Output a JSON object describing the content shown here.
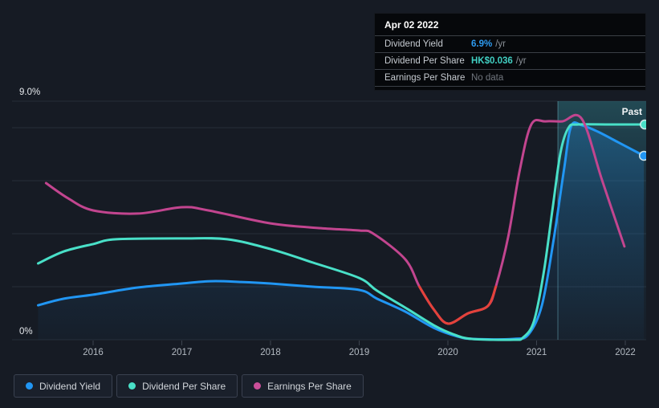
{
  "colors": {
    "background": "#161b24",
    "gridline": "#262d38",
    "axis_text": "#b3bac2",
    "y_axis_text": "#e5e8ec",
    "past_line": "#7fc9d6",
    "blue": "#2196f3",
    "teal": "#49e0c8",
    "pink": "#c2458f",
    "red": "#e4423a"
  },
  "tooltip": {
    "date": "Apr 02 2022",
    "rows": [
      {
        "label": "Dividend Yield",
        "value": "6.9%",
        "suffix": "/yr",
        "value_color": "#2e9bf0",
        "no_data": false
      },
      {
        "label": "Dividend Per Share",
        "value": "HK$0.036",
        "suffix": "/yr",
        "value_color": "#41cfc2",
        "no_data": false
      },
      {
        "label": "Earnings Per Share",
        "value": "No data",
        "suffix": "",
        "value_color": "#70767e",
        "no_data": true
      }
    ]
  },
  "legend": [
    {
      "label": "Dividend Yield",
      "color": "#2196f3"
    },
    {
      "label": "Dividend Per Share",
      "color": "#49e0c8"
    },
    {
      "label": "Earnings Per Share",
      "color": "#cb4f9a"
    }
  ],
  "chart_data": {
    "type": "line",
    "title": "Dividend history (Simply Wall St style)",
    "y_top_label": "9.0%",
    "y_bottom_label": "0%",
    "ylim": [
      0,
      9
    ],
    "xlim": [
      2015.3,
      2022.25
    ],
    "x_ticks": [
      2016,
      2017,
      2018,
      2019,
      2020,
      2021,
      2022
    ],
    "gridline_values": [
      0,
      2,
      4,
      6,
      8,
      9
    ],
    "grid": true,
    "legend_position": "bottom-left",
    "past_region": {
      "label": "Past",
      "start": 2021.24
    },
    "note": "All series plotted against the 0-9% dividend-yield axis; points are [year, value-on-axis]",
    "series": [
      {
        "name": "Dividend Yield",
        "color": "#2196f3",
        "area_fill": true,
        "end_dot": true,
        "points": [
          [
            2015.38,
            1.3
          ],
          [
            2015.67,
            1.55
          ],
          [
            2016.0,
            1.7
          ],
          [
            2016.5,
            1.97
          ],
          [
            2017.0,
            2.12
          ],
          [
            2017.33,
            2.21
          ],
          [
            2017.67,
            2.18
          ],
          [
            2018.0,
            2.12
          ],
          [
            2018.48,
            2.0
          ],
          [
            2019.0,
            1.88
          ],
          [
            2019.2,
            1.55
          ],
          [
            2019.52,
            1.06
          ],
          [
            2019.84,
            0.45
          ],
          [
            2020.11,
            0.12
          ],
          [
            2020.29,
            0.03
          ],
          [
            2020.74,
            0.03
          ],
          [
            2020.91,
            0.21
          ],
          [
            2021.06,
            1.3
          ],
          [
            2021.19,
            3.73
          ],
          [
            2021.31,
            6.45
          ],
          [
            2021.39,
            8.06
          ],
          [
            2021.51,
            8.09
          ],
          [
            2021.69,
            7.85
          ],
          [
            2021.92,
            7.45
          ],
          [
            2022.21,
            6.94
          ]
        ]
      },
      {
        "name": "Dividend Per Share",
        "color": "#49e0c8",
        "area_fill": false,
        "end_dot": true,
        "points": [
          [
            2015.38,
            2.88
          ],
          [
            2015.67,
            3.33
          ],
          [
            2016.0,
            3.61
          ],
          [
            2016.26,
            3.79
          ],
          [
            2017.0,
            3.82
          ],
          [
            2017.51,
            3.79
          ],
          [
            2018.0,
            3.42
          ],
          [
            2018.48,
            2.91
          ],
          [
            2019.0,
            2.33
          ],
          [
            2019.2,
            1.85
          ],
          [
            2019.52,
            1.21
          ],
          [
            2019.84,
            0.55
          ],
          [
            2020.06,
            0.21
          ],
          [
            2020.27,
            0.03
          ],
          [
            2020.74,
            0.0
          ],
          [
            2020.85,
            0.09
          ],
          [
            2020.97,
            0.7
          ],
          [
            2021.08,
            2.52
          ],
          [
            2021.18,
            4.94
          ],
          [
            2021.27,
            7.06
          ],
          [
            2021.36,
            8.0
          ],
          [
            2021.47,
            8.12
          ],
          [
            2021.83,
            8.12
          ],
          [
            2022.22,
            8.12
          ]
        ]
      },
      {
        "name": "Earnings Per Share",
        "color": "#c2458f",
        "area_fill": false,
        "end_dot": false,
        "negative_color": "#e4423a",
        "negative_range": [
          2019.68,
          2020.54
        ],
        "points": [
          [
            2015.47,
            5.91
          ],
          [
            2015.72,
            5.33
          ],
          [
            2016.0,
            4.88
          ],
          [
            2016.5,
            4.76
          ],
          [
            2017.0,
            5.0
          ],
          [
            2017.3,
            4.88
          ],
          [
            2018.0,
            4.39
          ],
          [
            2018.57,
            4.21
          ],
          [
            2019.0,
            4.12
          ],
          [
            2019.16,
            4.0
          ],
          [
            2019.52,
            3.03
          ],
          [
            2019.68,
            2.0
          ],
          [
            2019.84,
            1.15
          ],
          [
            2020.0,
            0.61
          ],
          [
            2020.23,
            1.0
          ],
          [
            2020.45,
            1.27
          ],
          [
            2020.54,
            2.0
          ],
          [
            2020.68,
            3.88
          ],
          [
            2020.81,
            6.39
          ],
          [
            2020.94,
            8.12
          ],
          [
            2021.1,
            8.24
          ],
          [
            2021.29,
            8.24
          ],
          [
            2021.51,
            8.33
          ],
          [
            2021.74,
            6.0
          ],
          [
            2021.99,
            3.52
          ]
        ]
      }
    ]
  }
}
